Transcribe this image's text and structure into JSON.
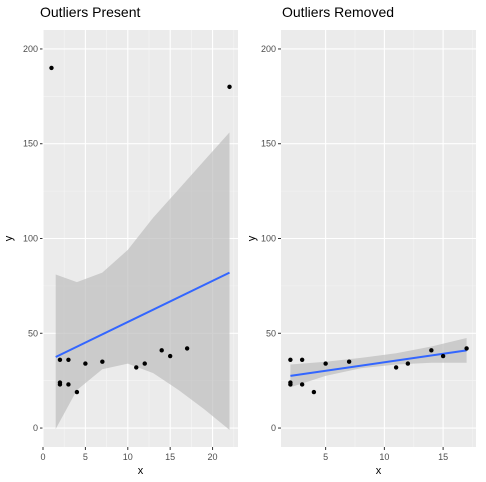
{
  "chart_data": [
    {
      "type": "scatter",
      "title": "Outliers Present",
      "xlabel": "x",
      "ylabel": "y",
      "xlim": [
        0,
        23
      ],
      "ylim": [
        -10,
        210
      ],
      "xticks": [
        0,
        5,
        10,
        15,
        20
      ],
      "yticks": [
        0,
        50,
        100,
        150,
        200
      ],
      "grid": true,
      "points": [
        {
          "x": 1,
          "y": 190
        },
        {
          "x": 2,
          "y": 36
        },
        {
          "x": 2,
          "y": 24
        },
        {
          "x": 2,
          "y": 23
        },
        {
          "x": 3,
          "y": 36
        },
        {
          "x": 3,
          "y": 23
        },
        {
          "x": 4,
          "y": 19
        },
        {
          "x": 5,
          "y": 34
        },
        {
          "x": 7,
          "y": 35
        },
        {
          "x": 11,
          "y": 32
        },
        {
          "x": 12,
          "y": 34
        },
        {
          "x": 14,
          "y": 41
        },
        {
          "x": 15,
          "y": 38
        },
        {
          "x": 17,
          "y": 42
        },
        {
          "x": 22,
          "y": 180
        }
      ],
      "fit": {
        "x": [
          1.5,
          22
        ],
        "y": [
          37.5,
          82
        ],
        "band": {
          "x": [
            1.5,
            4,
            7,
            10,
            13,
            16,
            19,
            22
          ],
          "lower": [
            -0.5,
            20,
            31,
            34,
            29,
            20,
            10,
            -1
          ],
          "upper": [
            81,
            77,
            82,
            94,
            111,
            126,
            141,
            156
          ]
        }
      }
    },
    {
      "type": "scatter",
      "title": "Outliers Removed",
      "xlabel": "x",
      "ylabel": "y",
      "xlim": [
        1.2,
        17.8
      ],
      "ylim": [
        -10,
        210
      ],
      "xticks": [
        5,
        10,
        15
      ],
      "yticks": [
        0,
        50,
        100,
        150,
        200
      ],
      "grid": true,
      "points": [
        {
          "x": 2,
          "y": 36
        },
        {
          "x": 2,
          "y": 24
        },
        {
          "x": 2,
          "y": 23
        },
        {
          "x": 3,
          "y": 36
        },
        {
          "x": 3,
          "y": 23
        },
        {
          "x": 4,
          "y": 19
        },
        {
          "x": 5,
          "y": 34
        },
        {
          "x": 7,
          "y": 35
        },
        {
          "x": 11,
          "y": 32
        },
        {
          "x": 12,
          "y": 34
        },
        {
          "x": 14,
          "y": 41
        },
        {
          "x": 15,
          "y": 38
        },
        {
          "x": 17,
          "y": 42
        }
      ],
      "fit": {
        "x": [
          2,
          17
        ],
        "y": [
          27.5,
          41
        ],
        "band": {
          "x": [
            2,
            5,
            8,
            11,
            14,
            17
          ],
          "lower": [
            21.5,
            27.5,
            31.5,
            33.5,
            34.5,
            34.5
          ],
          "upper": [
            33.5,
            35,
            37,
            39.5,
            43,
            47.5
          ]
        }
      }
    }
  ],
  "colors": {
    "panel_bg": "#ebebeb",
    "grid_major": "#ffffff",
    "point": "#000000",
    "fit_line": "#3366ff",
    "band": "#bdbdbd"
  }
}
